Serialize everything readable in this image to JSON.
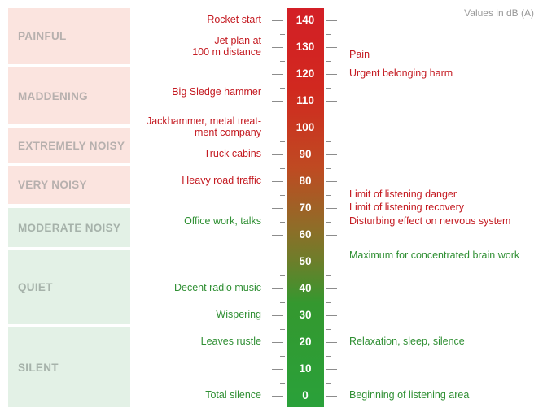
{
  "unit_note": "Values in dB (A)",
  "categories": [
    {
      "label": "PAINFUL",
      "color": "#fbe4df"
    },
    {
      "label": "MADDENING",
      "color": "#fbe4df"
    },
    {
      "label": "EXTREMELY NOISY",
      "color": "#fbe4df"
    },
    {
      "label": "VERY NOISY",
      "color": "#fbe4df"
    },
    {
      "label": "MODERATE NOISY",
      "color": "#e3f1e6"
    },
    {
      "label": "QUIET",
      "color": "#e3f1e6"
    },
    {
      "label": "SILENT",
      "color": "#e3f1e6"
    }
  ],
  "scale": {
    "values": [
      "140",
      "130",
      "120",
      "110",
      "100",
      "90",
      "80",
      "70",
      "60",
      "50",
      "40",
      "30",
      "20",
      "10",
      "0"
    ],
    "top_color": "#d31f26",
    "bottom_color": "#2aa13a"
  },
  "examples": [
    {
      "text": "Rocket start",
      "db": 140
    },
    {
      "text": "Jet plan at\n100 m distance",
      "db": 130
    },
    {
      "text": "Big Sledge hammer",
      "db": 113
    },
    {
      "text": "Jackhammer, metal treat-\nment company",
      "db": 100
    },
    {
      "text": "Truck cabins",
      "db": 90
    },
    {
      "text": "Heavy road traffic",
      "db": 80
    },
    {
      "text": "Office work, talks",
      "db": 65
    },
    {
      "text": "Decent radio music",
      "db": 40
    },
    {
      "text": "Wispering",
      "db": 30
    },
    {
      "text": "Leaves rustle",
      "db": 20
    },
    {
      "text": "Total silence",
      "db": 0
    }
  ],
  "effects": [
    {
      "text": "Pain",
      "db": 127
    },
    {
      "text": "Urgent belonging harm",
      "db": 120
    },
    {
      "text": "Limit of listening danger",
      "db": 75
    },
    {
      "text": "Limit of listening recovery",
      "db": 70
    },
    {
      "text": "Disturbing effect on nervous system",
      "db": 65
    },
    {
      "text": "Maximum for concentrated brain work",
      "db": 52
    },
    {
      "text": "Relaxation, sleep, silence",
      "db": 20
    },
    {
      "text": "Beginning of listening area",
      "db": 0
    }
  ],
  "colors": {
    "loud_text": "#c41a21",
    "quiet_text": "#2f8f33"
  }
}
